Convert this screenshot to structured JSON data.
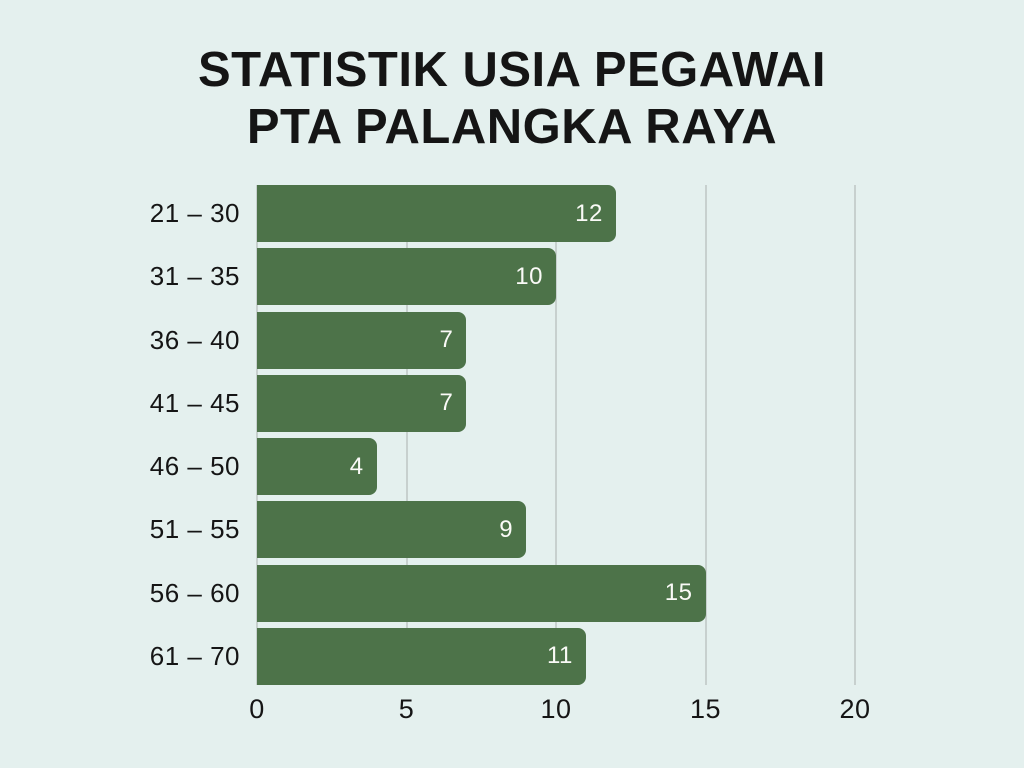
{
  "title": {
    "line1": "STATISTIK USIA PEGAWAI",
    "line2": "PTA PALANGKA RAYA"
  },
  "chart_data": {
    "type": "bar",
    "orientation": "horizontal",
    "title": "STATISTIK USIA PEGAWAI PTA PALANGKA RAYA",
    "categories": [
      "21 – 30",
      "31 – 35",
      "36 – 40",
      "41 – 45",
      "46 – 50",
      "51 – 55",
      "56 – 60",
      "61 – 70"
    ],
    "values": [
      12,
      10,
      7,
      7,
      4,
      9,
      15,
      11
    ],
    "xlabel": "",
    "ylabel": "",
    "xlim": [
      0,
      20
    ],
    "xticks": [
      0,
      5,
      10,
      15,
      20
    ],
    "grid": true,
    "legend": false,
    "value_label_position": "inside-end",
    "bar_color": "#4d7349",
    "background_color": "#e4f0ee",
    "gridline_color": "#c7d0ce",
    "text_color": "#151515",
    "value_label_color": "#fafaf7"
  }
}
